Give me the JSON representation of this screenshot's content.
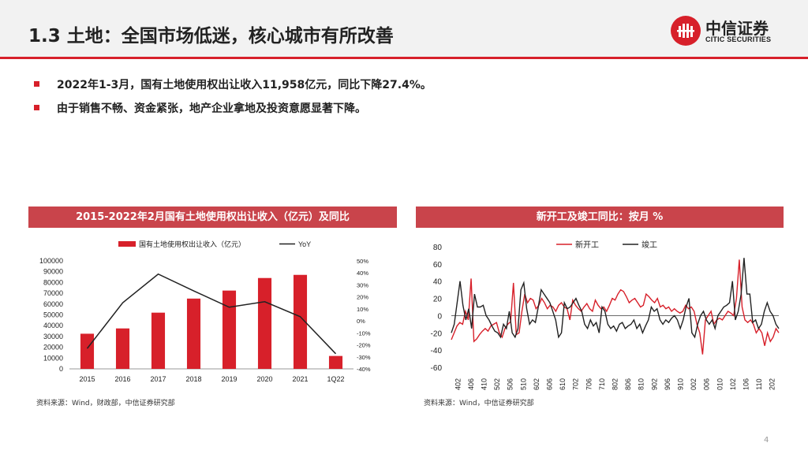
{
  "page": {
    "title": "1.3 土地：全国市场低迷，核心城市有所改善",
    "page_number": "4"
  },
  "logo": {
    "name_cn": "中信证券",
    "name_en": "CITIC SECURITIES"
  },
  "bullets": [
    "2022年1-3月，国有土地使用权出让收入11,958亿元，同比下降27.4%。",
    "由于销售不畅、资金紧张，地产企业拿地及投资意愿显著下降。"
  ],
  "left_panel": {
    "header": "2015-2022年2月国有土地使用权出让收入（亿元）及同比",
    "source": "资料来源：Wind，财政部，中信证券研究部"
  },
  "right_panel": {
    "header": "新开工及竣工同比：按月 %",
    "source": "资料来源：Wind，中信证券研究部"
  },
  "chart_data": [
    {
      "type": "bar",
      "categories": [
        "2015",
        "2016",
        "2017",
        "2018",
        "2019",
        "2020",
        "2021",
        "1Q22"
      ],
      "series": [
        {
          "name": "国有土地使用权出让收入（亿元）",
          "type": "bar",
          "axis": "left",
          "color": "#d7202a",
          "values": [
            32547,
            37457,
            52059,
            65096,
            72517,
            84142,
            87051,
            11958
          ]
        },
        {
          "name": "YoY",
          "type": "line",
          "axis": "right",
          "color": "#222222",
          "values": [
            -23.0,
            15.1,
            39.0,
            25.0,
            11.4,
            16.0,
            3.5,
            -27.4
          ]
        }
      ],
      "ylim_left": [
        0,
        100000
      ],
      "yticks_left": [
        "0",
        "10000",
        "20000",
        "30000",
        "40000",
        "50000",
        "60000",
        "70000",
        "80000",
        "90000",
        "100000"
      ],
      "ylim_right": [
        -40,
        50
      ],
      "yticks_right": [
        "-40%",
        "-30%",
        "-20%",
        "-10%",
        "0%",
        "10%",
        "20%",
        "30%",
        "40%",
        "50%"
      ],
      "legend": "top"
    },
    {
      "type": "line",
      "x_ticks": [
        "1402",
        "1406",
        "1410",
        "1502",
        "1506",
        "1510",
        "1602",
        "1606",
        "1610",
        "1702",
        "1706",
        "1710",
        "1802",
        "1806",
        "1810",
        "1902",
        "1906",
        "1910",
        "2002",
        "2006",
        "2010",
        "2102",
        "2106",
        "2110",
        "2202"
      ],
      "ylim": [
        -60,
        80
      ],
      "yticks": [
        "-60",
        "-40",
        "-20",
        "0",
        "20",
        "40",
        "60",
        "80"
      ],
      "series": [
        {
          "name": "新开工",
          "color": "#d7202a",
          "values": [
            -28,
            -20,
            -12,
            -8,
            -10,
            5,
            -5,
            43,
            -30,
            -27,
            -22,
            -18,
            -15,
            -18,
            -12,
            -10,
            -8,
            -20,
            -25,
            -15,
            -10,
            -7,
            38,
            -22,
            -20,
            5,
            25,
            15,
            20,
            18,
            8,
            12,
            20,
            15,
            8,
            12,
            10,
            5,
            12,
            15,
            10,
            8,
            -5,
            18,
            12,
            8,
            5,
            10,
            14,
            8,
            5,
            18,
            12,
            8,
            10,
            5,
            12,
            20,
            18,
            25,
            30,
            28,
            22,
            15,
            18,
            20,
            15,
            10,
            12,
            25,
            22,
            18,
            15,
            20,
            10,
            12,
            8,
            10,
            5,
            8,
            5,
            3,
            5,
            12,
            8,
            10,
            5,
            -10,
            -20,
            -45,
            -5,
            0,
            5,
            -10,
            -5,
            -3,
            -5,
            0,
            5,
            3,
            0,
            20,
            65,
            10,
            -5,
            -8,
            -5,
            -10,
            -20,
            -15,
            -20,
            -35,
            -20,
            -30,
            -25,
            -15,
            -20
          ]
        },
        {
          "name": "竣工",
          "color": "#222222",
          "values": [
            -20,
            -10,
            15,
            40,
            12,
            -5,
            8,
            -15,
            25,
            10,
            10,
            12,
            0,
            -5,
            -12,
            -18,
            -20,
            -25,
            -10,
            -15,
            5,
            -20,
            -25,
            -15,
            30,
            38,
            8,
            -10,
            -5,
            -8,
            10,
            30,
            25,
            20,
            15,
            5,
            -5,
            -25,
            -20,
            15,
            8,
            10,
            15,
            20,
            12,
            5,
            -10,
            -15,
            -5,
            -12,
            -8,
            -20,
            10,
            5,
            -10,
            -15,
            -12,
            -18,
            -10,
            -8,
            -15,
            -12,
            -10,
            -5,
            -15,
            -10,
            -20,
            -12,
            -5,
            10,
            5,
            8,
            -5,
            -10,
            -5,
            -8,
            -3,
            0,
            -5,
            -15,
            -5,
            10,
            20,
            -20,
            -25,
            -10,
            0,
            5,
            -5,
            -10,
            -5,
            -15,
            0,
            5,
            10,
            12,
            15,
            40,
            -5,
            5,
            25,
            67,
            25,
            25,
            -8,
            -5,
            -15,
            -10,
            5,
            15,
            5,
            0,
            -10,
            -15
          ]
        }
      ],
      "legend": "top"
    }
  ]
}
